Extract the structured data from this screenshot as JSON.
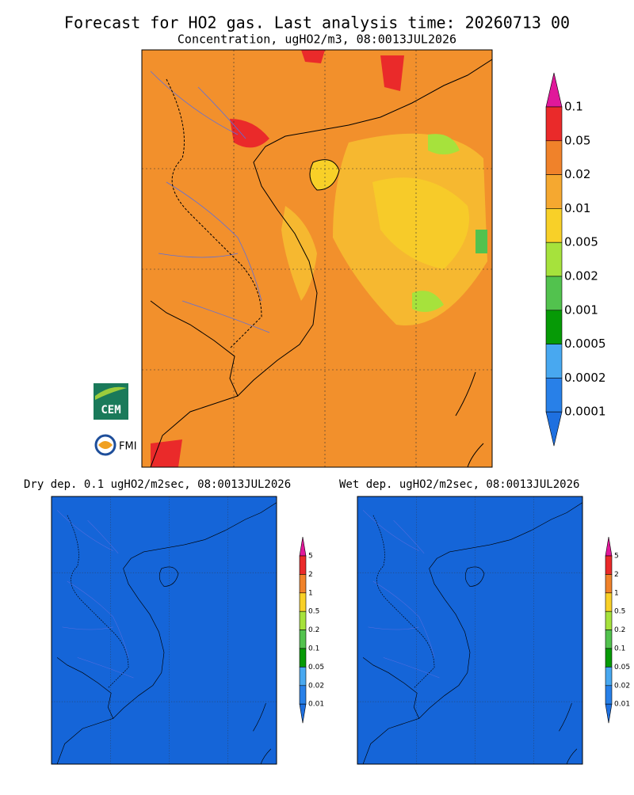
{
  "header": {
    "title": "Forecast for HO2 gas. Last analysis time: 20260713 00",
    "subtitle": "Concentration, ugHO2/m3, 08:0013JUL2026"
  },
  "main_colorbar": {
    "labels": [
      "0.1",
      "0.05",
      "0.02",
      "0.01",
      "0.005",
      "0.002",
      "0.001",
      "0.0005",
      "0.0002",
      "0.0001"
    ],
    "colors": [
      "#e0189a",
      "#ea2a2a",
      "#f0822a",
      "#f5a830",
      "#f8d028",
      "#a6e23c",
      "#52c24e",
      "#069a06",
      "#48a8f0",
      "#2880e8",
      "#1e70e0"
    ]
  },
  "logos": {
    "cem": "CEM",
    "fmi": "FMI"
  },
  "dry_panel": {
    "title": "Dry dep. 0.1 ugHO2/m2sec, 08:0013JUL2026",
    "colorbar": {
      "labels": [
        "5",
        "2",
        "1",
        "0.5",
        "0.2",
        "0.1",
        "0.05",
        "0.02",
        "0.01"
      ],
      "colors": [
        "#e0189a",
        "#ea2a2a",
        "#f0822a",
        "#f8d028",
        "#a6e23c",
        "#52c24e",
        "#069a06",
        "#48a8f0",
        "#2880e8",
        "#1e70e0"
      ]
    }
  },
  "wet_panel": {
    "title": "Wet dep. ugHO2/m2sec, 08:0013JUL2026",
    "colorbar": {
      "labels": [
        "5",
        "2",
        "1",
        "0.5",
        "0.2",
        "0.1",
        "0.05",
        "0.02",
        "0.01"
      ],
      "colors": [
        "#e0189a",
        "#ea2a2a",
        "#f0822a",
        "#f8d028",
        "#a6e23c",
        "#52c24e",
        "#069a06",
        "#48a8f0",
        "#2880e8",
        "#1e70e0"
      ]
    }
  }
}
